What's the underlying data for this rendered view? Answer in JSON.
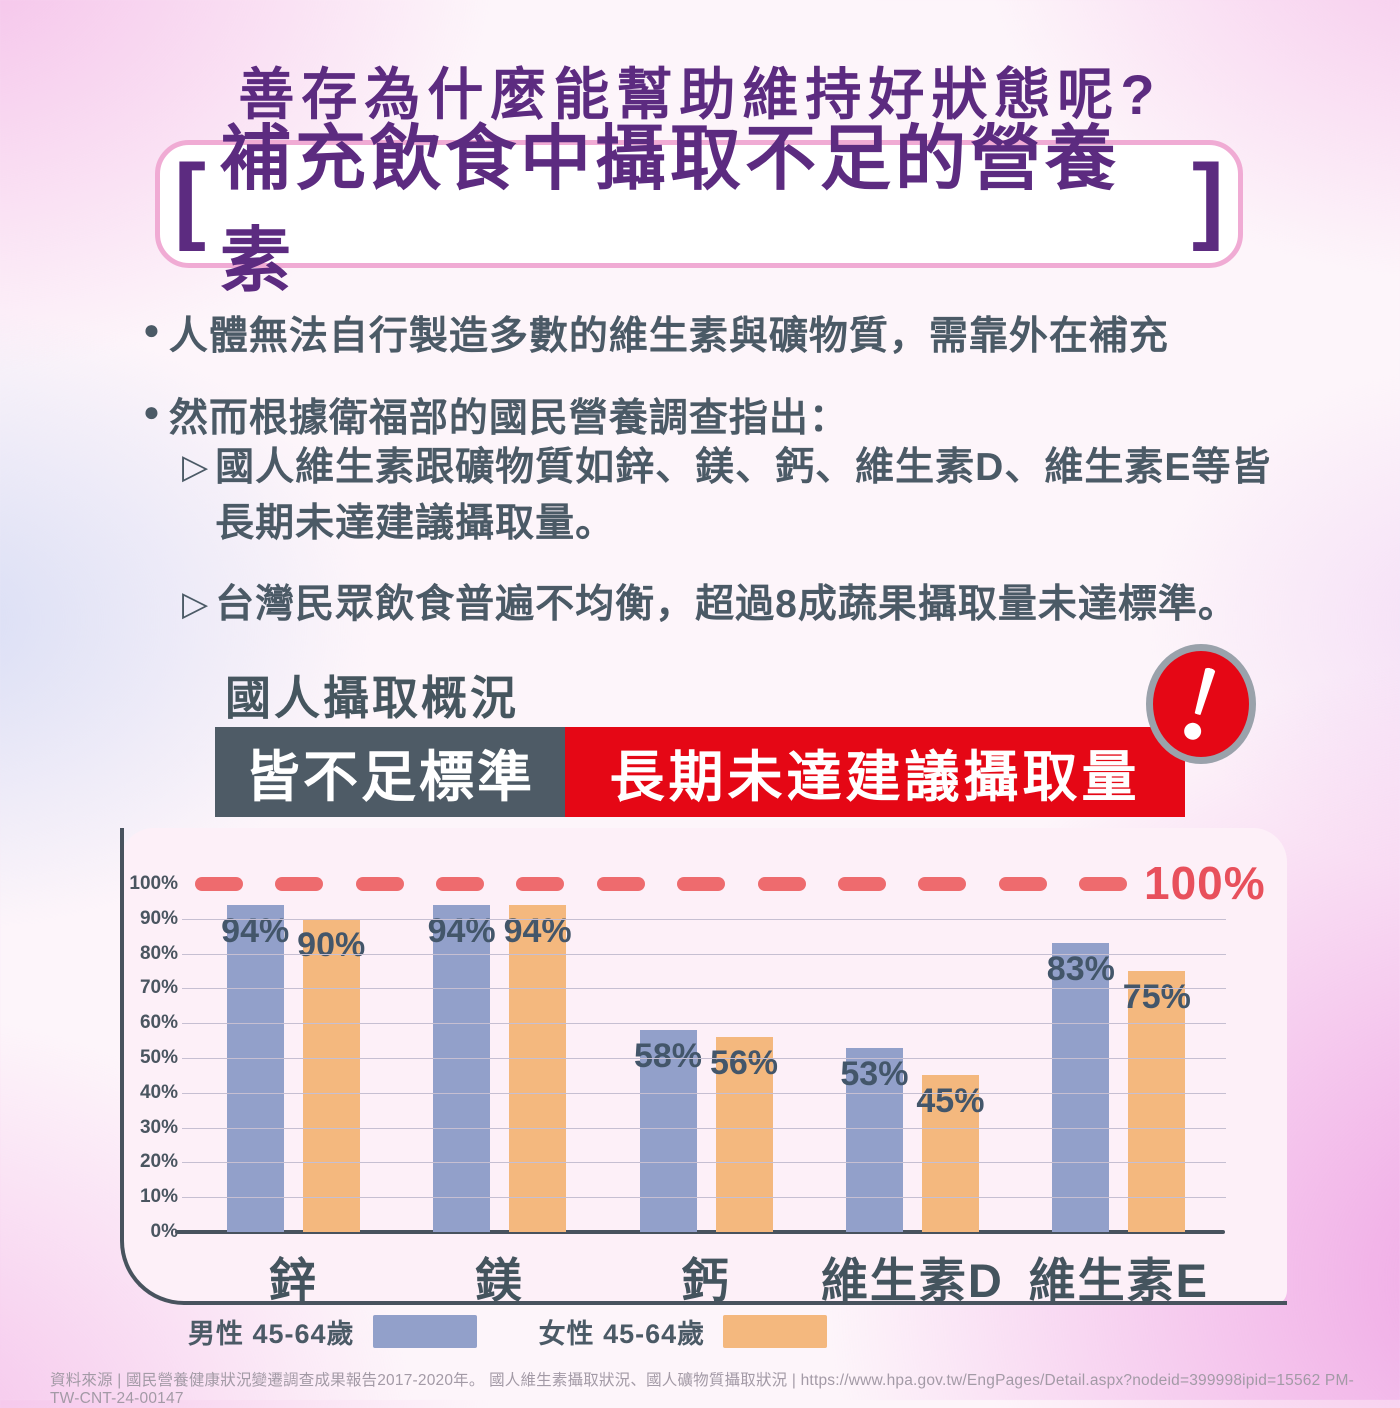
{
  "page": {
    "title": "善存為什麼能幫助維持好狀態呢?",
    "headline": {
      "bracket_left": "[",
      "text": "補充飲食中攝取不足的營養素",
      "bracket_right": "]"
    },
    "bullets": [
      {
        "marker": "●",
        "text": "人體無法自行製造多數的維生素與礦物質，需靠外在補充"
      },
      {
        "marker": "●",
        "text": "然而根據衛福部的國民營養調查指出："
      }
    ],
    "sub_bullets": [
      {
        "marker": "▷",
        "lines": [
          "國人維生素跟礦物質如鋅、鎂、鈣、維生素D、維生素E等皆",
          "長期未達建議攝取量。"
        ]
      },
      {
        "marker": "▷",
        "lines": [
          "台灣民眾飲食普遍不均衡，超過8成蔬果攝取量未達標準。"
        ]
      }
    ],
    "section_heading": "國人攝取概況",
    "badges": {
      "dark": {
        "text": "皆不足標準",
        "color": "#4e5b66"
      },
      "red": {
        "text": "長期未達建議攝取量",
        "color": "#e50715"
      }
    },
    "alert_icon": "exclamation-mark",
    "footer": "資料來源 | 國民營養健康狀況變遷調查成果報告2017-2020年。 國人維生素攝取狀況、國人礦物質攝取狀況 | https://www.hpa.gov.tw/EngPages/Detail.aspx?nodeid=399998ipid=15562 PM-TW-CNT-24-00147"
  },
  "chart_data": {
    "type": "bar",
    "title": "國人攝取概況",
    "categories": [
      "鋅",
      "鎂",
      "鈣",
      "維生素D",
      "維生素E"
    ],
    "series": [
      {
        "name": "男性 45-64歲",
        "color": "#92a0ca",
        "values": [
          94,
          94,
          58,
          53,
          83
        ]
      },
      {
        "name": "女性 45-64歲",
        "color": "#f4b87e",
        "values": [
          90,
          94,
          56,
          45,
          75
        ]
      }
    ],
    "value_suffix": "%",
    "ylim": [
      0,
      100
    ],
    "yticks": [
      "0%",
      "10%",
      "20%",
      "30%",
      "40%",
      "50%",
      "60%",
      "70%",
      "80%",
      "90%",
      "100%"
    ],
    "grid": true,
    "reference_line": {
      "value": 100,
      "label": "100%",
      "style": "dashed",
      "color": "#ee6b6e"
    },
    "legend_position": "bottom"
  },
  "colors": {
    "title_purple": "#5c2b80",
    "body_text": "#4b5a66",
    "banner_dark": "#4e5b66",
    "banner_red": "#e50715",
    "dash_red": "#ee6b6e",
    "male_bar": "#92a0ca",
    "female_bar": "#f4b87e",
    "card_bg": "#fdf0f8"
  }
}
